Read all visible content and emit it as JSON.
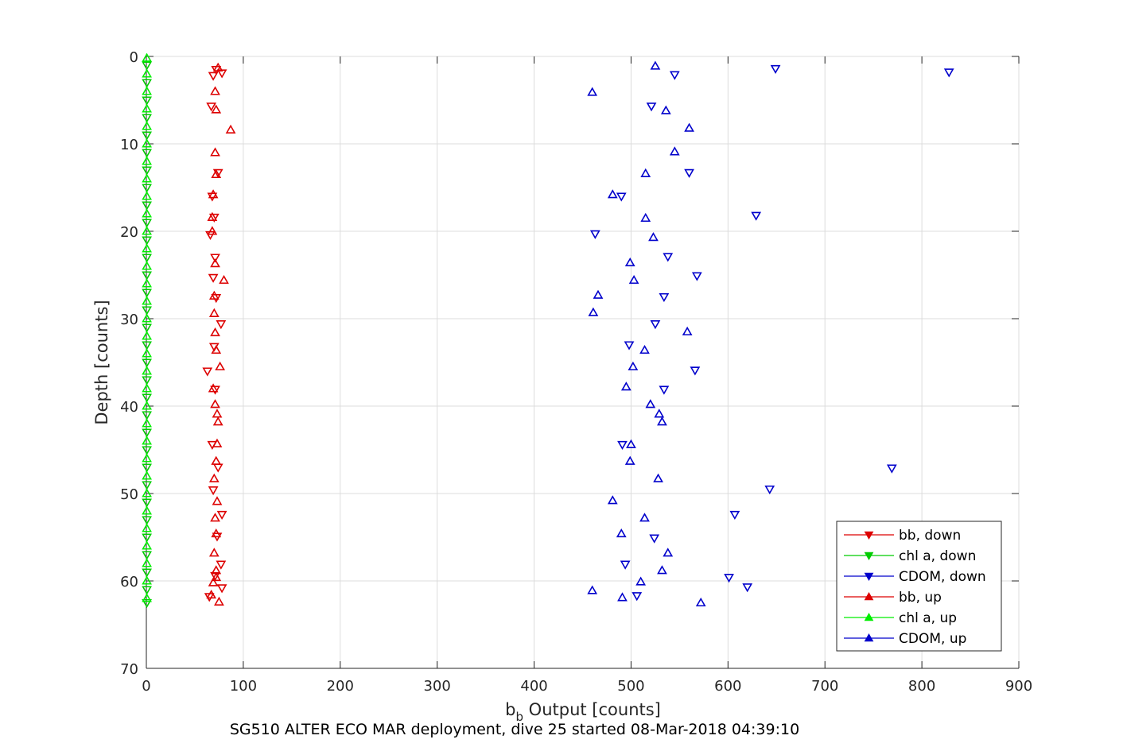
{
  "chart_data": {
    "type": "scatter",
    "xlabel_base": "b",
    "xlabel_sub": "b",
    "xlabel_rest": " Output [counts]",
    "ylabel": "Depth [counts]",
    "caption": "SG510 ALTER ECO MAR deployment, dive 25 started 08-Mar-2018 04:39:10",
    "xlim": [
      0,
      900
    ],
    "ylim": [
      0,
      70
    ],
    "y_reversed": true,
    "grid": true,
    "legend_position": "bottom-right",
    "x_ticks": [
      0,
      100,
      200,
      300,
      400,
      500,
      600,
      700,
      800,
      900
    ],
    "y_ticks": [
      0,
      10,
      20,
      30,
      40,
      50,
      60,
      70
    ],
    "series": [
      {
        "name": "bb, down",
        "color": "#dd0000",
        "marker": "triangle-down",
        "points": [
          [
            72,
            1.5
          ],
          [
            78,
            1.9
          ],
          [
            69,
            2.2
          ],
          [
            67,
            5.7
          ],
          [
            74,
            13.3
          ],
          [
            68,
            16.0
          ],
          [
            70,
            18.4
          ],
          [
            66,
            20.4
          ],
          [
            71,
            23.0
          ],
          [
            69,
            25.3
          ],
          [
            72,
            27.6
          ],
          [
            77,
            30.6
          ],
          [
            70,
            33.2
          ],
          [
            63,
            36.0
          ],
          [
            71,
            38.1
          ],
          [
            68,
            44.4
          ],
          [
            74,
            47.0
          ],
          [
            69,
            49.6
          ],
          [
            78,
            52.4
          ],
          [
            73,
            54.9
          ],
          [
            77,
            58.1
          ],
          [
            71,
            59.4
          ],
          [
            78,
            60.8
          ],
          [
            65,
            61.8
          ]
        ]
      },
      {
        "name": "chl a, down",
        "color": "#00cc00",
        "marker": "triangle-down",
        "points": [
          [
            0.5,
            1
          ],
          [
            0.5,
            3
          ],
          [
            0.5,
            5
          ],
          [
            0.5,
            7
          ],
          [
            0.5,
            9
          ],
          [
            0.5,
            11
          ],
          [
            0.5,
            13
          ],
          [
            0.5,
            15
          ],
          [
            0.5,
            17
          ],
          [
            0.5,
            19
          ],
          [
            0.5,
            21
          ],
          [
            0.5,
            23
          ],
          [
            0.5,
            25
          ],
          [
            0.5,
            27
          ],
          [
            0.5,
            29
          ],
          [
            0.5,
            31
          ],
          [
            0.5,
            33
          ],
          [
            0.5,
            35
          ],
          [
            0.5,
            37
          ],
          [
            0.5,
            39
          ],
          [
            0.5,
            41
          ],
          [
            0.5,
            43
          ],
          [
            0.5,
            45
          ],
          [
            0.5,
            47
          ],
          [
            0.5,
            49
          ],
          [
            0.5,
            51
          ],
          [
            0.5,
            53
          ],
          [
            0.5,
            55
          ],
          [
            0.5,
            57
          ],
          [
            0.5,
            59
          ],
          [
            0.5,
            61
          ],
          [
            0.5,
            62.5
          ]
        ]
      },
      {
        "name": "CDOM, down",
        "color": "#0000cc",
        "marker": "triangle-down",
        "points": [
          [
            649,
            1.4
          ],
          [
            828,
            1.8
          ],
          [
            545,
            2.1
          ],
          [
            521,
            5.7
          ],
          [
            560,
            13.3
          ],
          [
            490,
            16.0
          ],
          [
            629,
            18.2
          ],
          [
            463,
            20.3
          ],
          [
            538,
            22.9
          ],
          [
            568,
            25.1
          ],
          [
            534,
            27.5
          ],
          [
            525,
            30.6
          ],
          [
            498,
            33.0
          ],
          [
            566,
            35.9
          ],
          [
            534,
            38.1
          ],
          [
            491,
            44.4
          ],
          [
            769,
            47.1
          ],
          [
            643,
            49.5
          ],
          [
            607,
            52.4
          ],
          [
            524,
            55.1
          ],
          [
            494,
            58.1
          ],
          [
            601,
            59.6
          ],
          [
            620,
            60.7
          ],
          [
            506,
            61.7
          ]
        ]
      },
      {
        "name": "bb, up",
        "color": "#dd0000",
        "marker": "triangle-up",
        "points": [
          [
            74,
            1.3
          ],
          [
            71,
            4.0
          ],
          [
            72,
            6.1
          ],
          [
            87,
            8.4
          ],
          [
            71,
            11.0
          ],
          [
            72,
            13.5
          ],
          [
            69,
            15.8
          ],
          [
            68,
            18.4
          ],
          [
            68,
            20.0
          ],
          [
            71,
            23.7
          ],
          [
            80,
            25.6
          ],
          [
            70,
            27.4
          ],
          [
            70,
            29.4
          ],
          [
            71,
            31.6
          ],
          [
            72,
            33.6
          ],
          [
            76,
            35.5
          ],
          [
            69,
            38.0
          ],
          [
            71,
            39.8
          ],
          [
            73,
            40.9
          ],
          [
            74,
            41.8
          ],
          [
            73,
            44.3
          ],
          [
            72,
            46.3
          ],
          [
            70,
            48.3
          ],
          [
            73,
            50.9
          ],
          [
            71,
            52.8
          ],
          [
            72,
            54.6
          ],
          [
            70,
            56.8
          ],
          [
            72,
            58.8
          ],
          [
            72,
            59.6
          ],
          [
            69,
            60.2
          ],
          [
            67,
            61.6
          ],
          [
            75,
            62.4
          ]
        ]
      },
      {
        "name": "chl a, up",
        "color": "#00ee00",
        "marker": "triangle-up",
        "points": [
          [
            0.5,
            0.2
          ],
          [
            0.5,
            2
          ],
          [
            0.5,
            4
          ],
          [
            0.5,
            6
          ],
          [
            0.5,
            8
          ],
          [
            0.5,
            10
          ],
          [
            0.5,
            12
          ],
          [
            0.5,
            14
          ],
          [
            0.5,
            16
          ],
          [
            0.5,
            18
          ],
          [
            0.5,
            20
          ],
          [
            0.5,
            22
          ],
          [
            0.5,
            24
          ],
          [
            0.5,
            26
          ],
          [
            0.5,
            28
          ],
          [
            0.5,
            30
          ],
          [
            0.5,
            32
          ],
          [
            0.5,
            34
          ],
          [
            0.5,
            36
          ],
          [
            0.5,
            38
          ],
          [
            0.5,
            40
          ],
          [
            0.5,
            42
          ],
          [
            0.5,
            44
          ],
          [
            0.5,
            46
          ],
          [
            0.5,
            48
          ],
          [
            0.5,
            50
          ],
          [
            0.5,
            52
          ],
          [
            0.5,
            54
          ],
          [
            0.5,
            56
          ],
          [
            0.5,
            58
          ],
          [
            0.5,
            60
          ],
          [
            0.5,
            62
          ]
        ]
      },
      {
        "name": "CDOM, up",
        "color": "#0000cc",
        "marker": "triangle-up",
        "points": [
          [
            525,
            1.1
          ],
          [
            460,
            4.1
          ],
          [
            536,
            6.2
          ],
          [
            560,
            8.2
          ],
          [
            545,
            10.9
          ],
          [
            515,
            13.4
          ],
          [
            481,
            15.8
          ],
          [
            515,
            18.5
          ],
          [
            523,
            20.7
          ],
          [
            499,
            23.6
          ],
          [
            503,
            25.6
          ],
          [
            466,
            27.3
          ],
          [
            461,
            29.3
          ],
          [
            558,
            31.5
          ],
          [
            514,
            33.6
          ],
          [
            502,
            35.5
          ],
          [
            495,
            37.8
          ],
          [
            520,
            39.8
          ],
          [
            529,
            40.9
          ],
          [
            532,
            41.8
          ],
          [
            500,
            44.4
          ],
          [
            499,
            46.3
          ],
          [
            528,
            48.3
          ],
          [
            481,
            50.8
          ],
          [
            514,
            52.8
          ],
          [
            490,
            54.6
          ],
          [
            538,
            56.8
          ],
          [
            532,
            58.8
          ],
          [
            510,
            60.1
          ],
          [
            460,
            61.1
          ],
          [
            491,
            61.9
          ],
          [
            572,
            62.5
          ]
        ]
      }
    ]
  }
}
